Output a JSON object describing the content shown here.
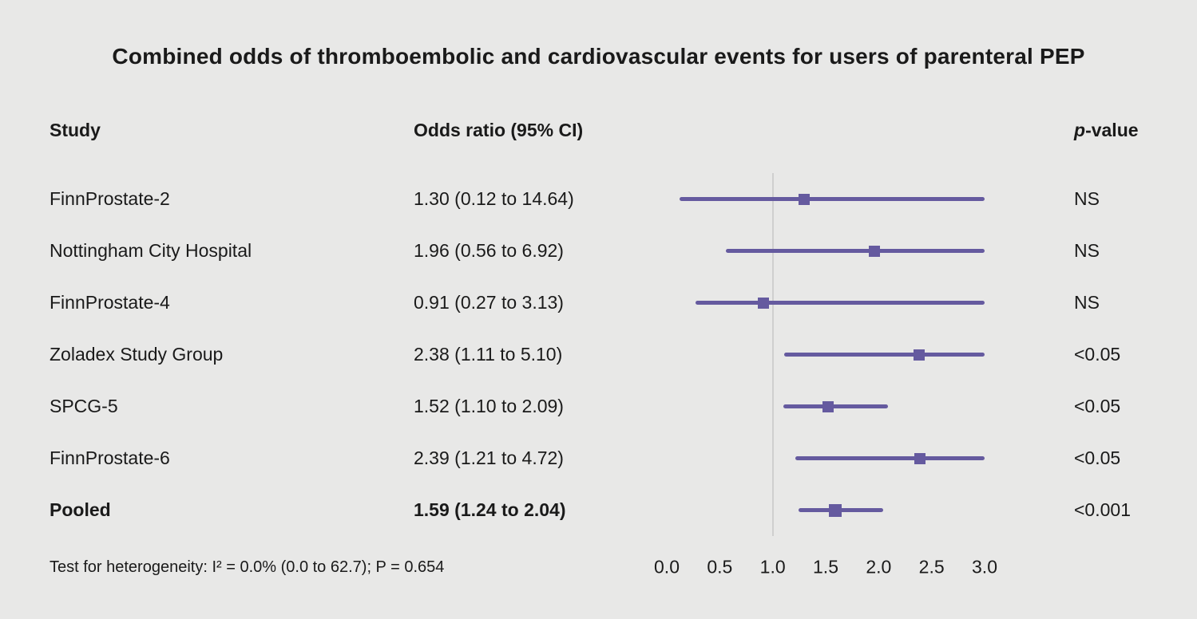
{
  "title": "Combined odds of thromboembolic and cardiovascular events for users of parenteral PEP",
  "columns": {
    "study": "Study",
    "or": "Odds ratio (95% CI)",
    "p_italic": "p",
    "p_rest": "-value"
  },
  "footer": "Test for heterogeneity: I² = 0.0% (0.0 to 62.7); P = 0.654",
  "colors": {
    "accent": "#655a9f",
    "reference_line": "#cfcfcf",
    "background": "#e8e8e7",
    "text": "#1a1a1a"
  },
  "chart_data": {
    "type": "forest",
    "title": "Combined odds of thromboembolic and cardiovascular events for users of parenteral PEP",
    "xlabel": "Odds ratio",
    "xlim": [
      0,
      3
    ],
    "clip_max": 3.0,
    "reference_value": 1.0,
    "axis_ticks": [
      0.0,
      0.5,
      1.0,
      1.5,
      2.0,
      2.5,
      3.0
    ],
    "tick_labels": [
      "0.0",
      "0.5",
      "1.0",
      "1.5",
      "2.0",
      "2.5",
      "3.0"
    ],
    "rows": [
      {
        "study": "FinnProstate-2",
        "or": 1.3,
        "ci_low": 0.12,
        "ci_high": 14.64,
        "or_label": "1.30 (0.12 to 14.64)",
        "p_value": "NS",
        "pooled": false
      },
      {
        "study": "Nottingham City Hospital",
        "or": 1.96,
        "ci_low": 0.56,
        "ci_high": 6.92,
        "or_label": "1.96 (0.56 to 6.92)",
        "p_value": "NS",
        "pooled": false
      },
      {
        "study": "FinnProstate-4",
        "or": 0.91,
        "ci_low": 0.27,
        "ci_high": 3.13,
        "or_label": "0.91 (0.27 to 3.13)",
        "p_value": "NS",
        "pooled": false
      },
      {
        "study": "Zoladex Study Group",
        "or": 2.38,
        "ci_low": 1.11,
        "ci_high": 5.1,
        "or_label": "2.38 (1.11 to 5.10)",
        "p_value": "<0.05",
        "pooled": false
      },
      {
        "study": "SPCG-5",
        "or": 1.52,
        "ci_low": 1.1,
        "ci_high": 2.09,
        "or_label": "1.52 (1.10 to 2.09)",
        "p_value": "<0.05",
        "pooled": false
      },
      {
        "study": "FinnProstate-6",
        "or": 2.39,
        "ci_low": 1.21,
        "ci_high": 4.72,
        "or_label": "2.39 (1.21 to 4.72)",
        "p_value": "<0.05",
        "pooled": false
      },
      {
        "study": "Pooled",
        "or": 1.59,
        "ci_low": 1.24,
        "ci_high": 2.04,
        "or_label": "1.59 (1.24 to 2.04)",
        "p_value": "<0.001",
        "pooled": true
      }
    ]
  }
}
